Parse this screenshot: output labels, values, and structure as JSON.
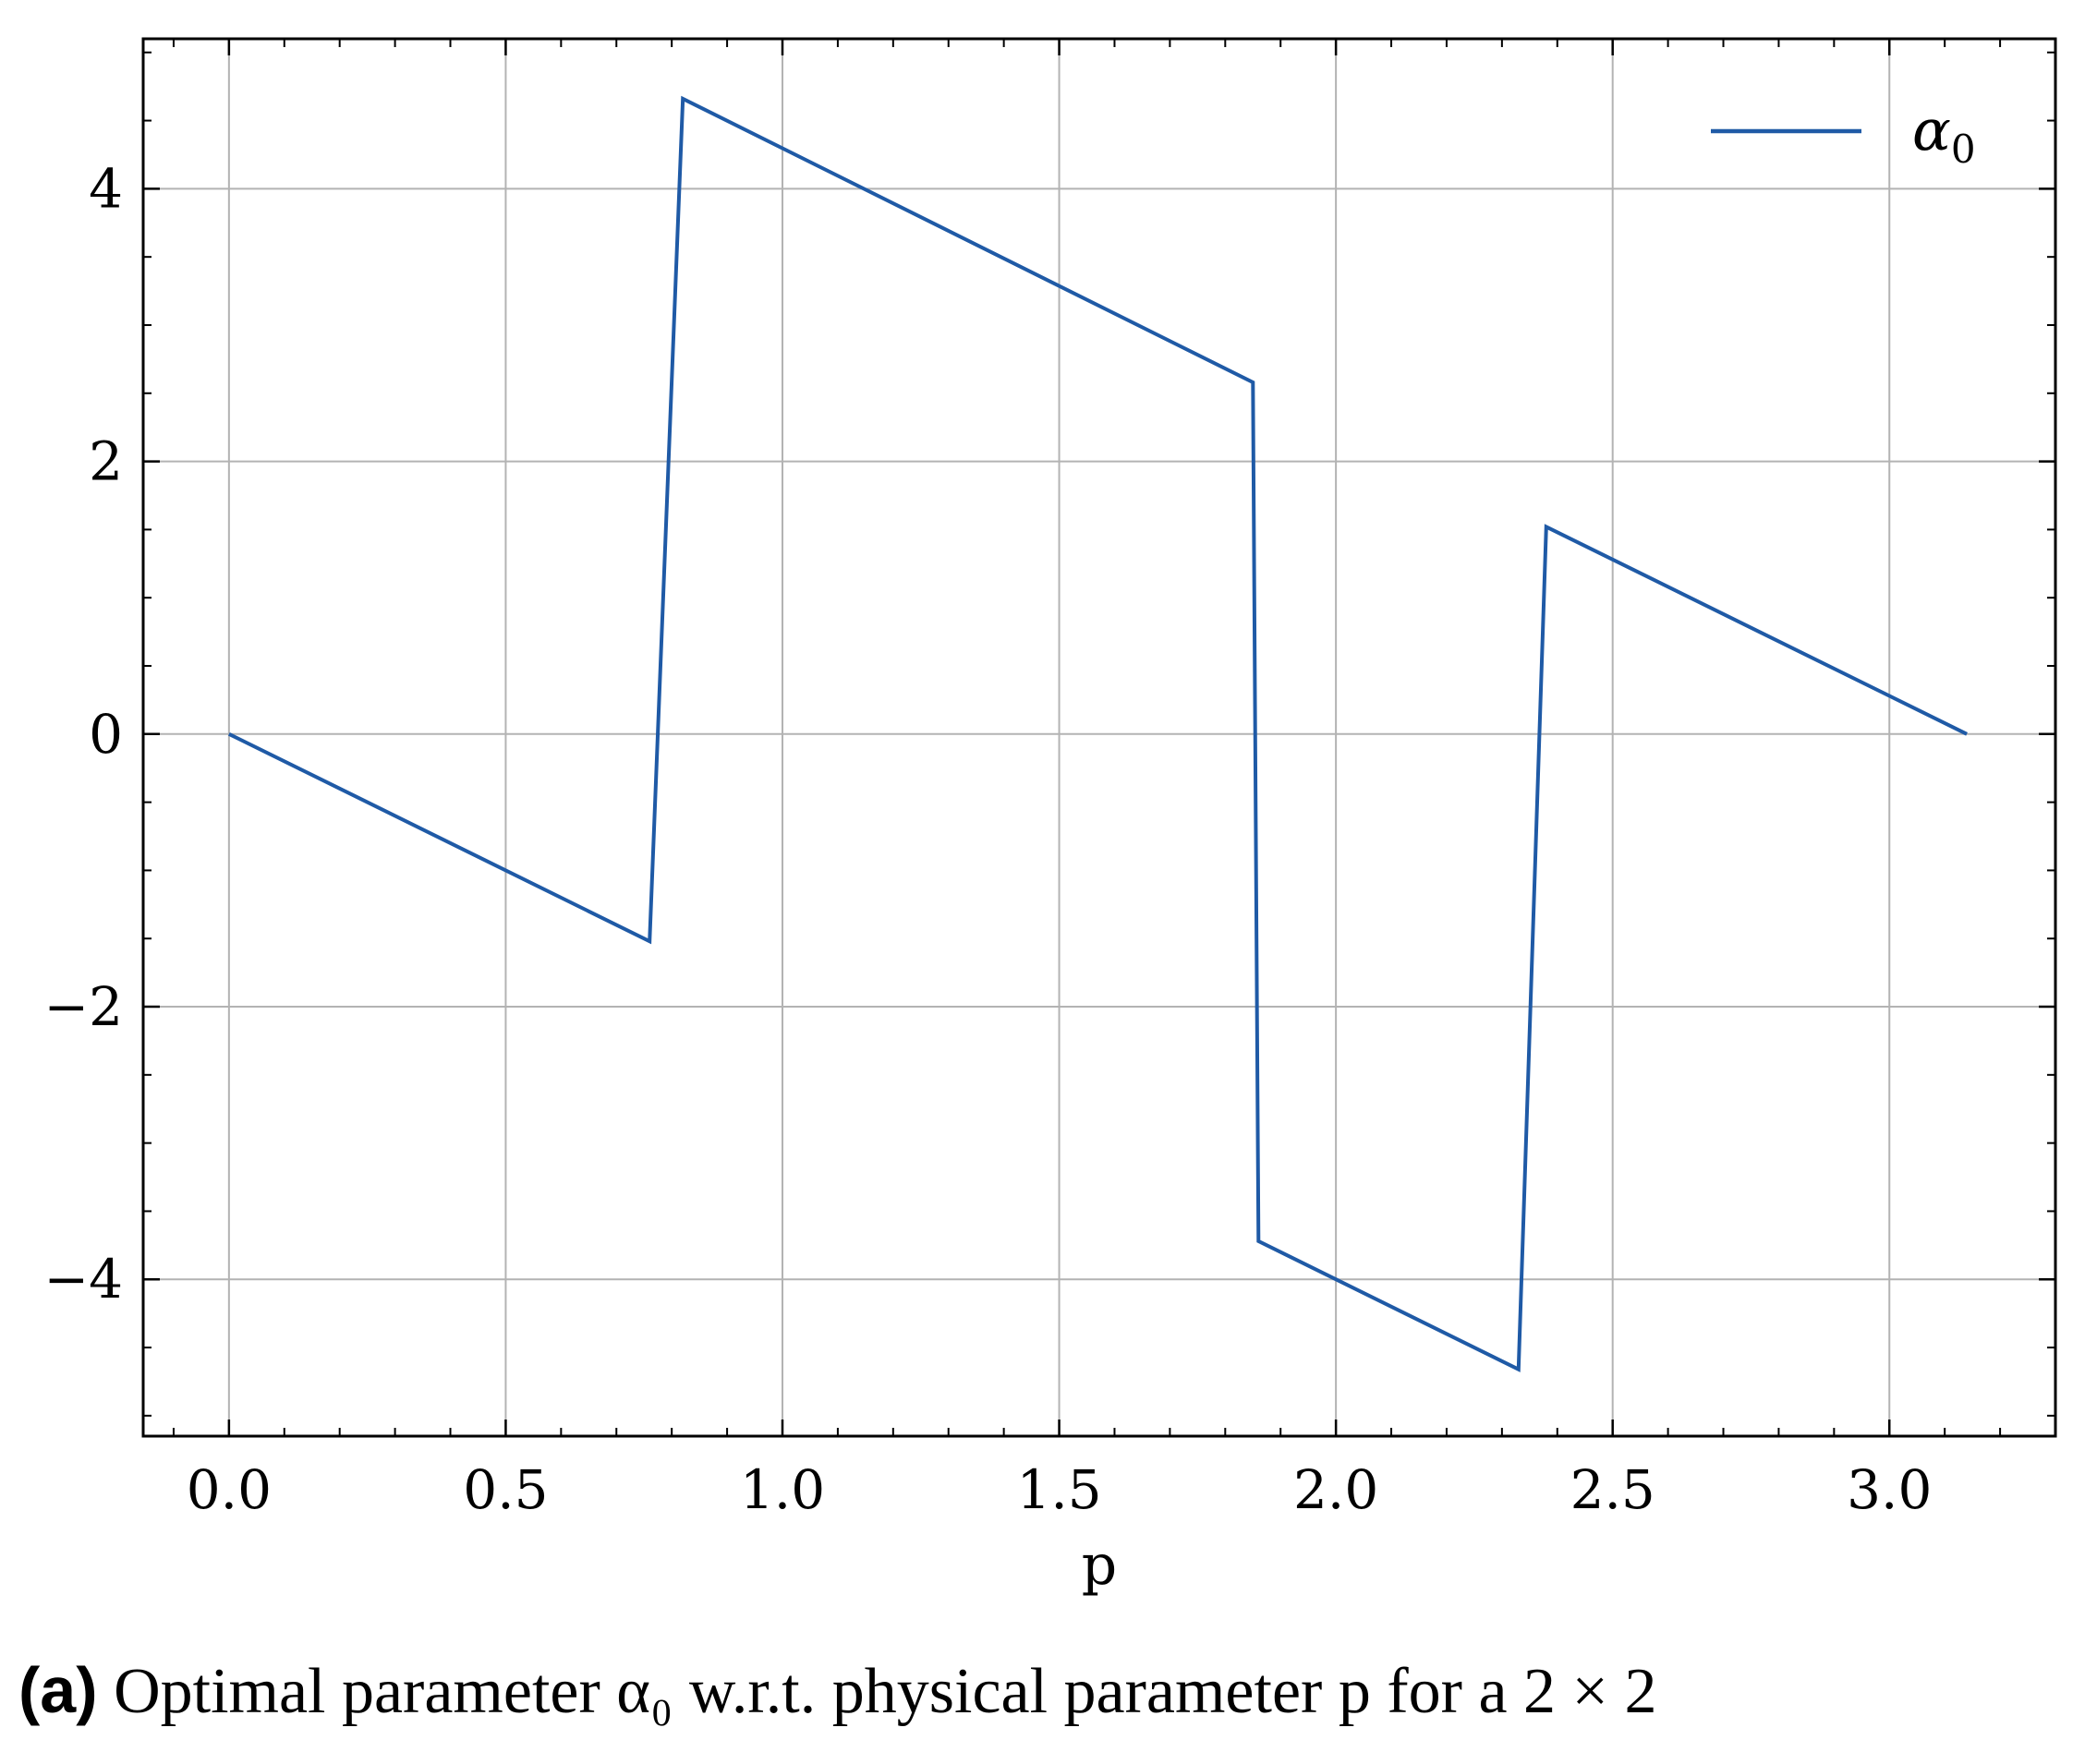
{
  "chart_data": {
    "type": "line",
    "xlabel": "p",
    "ylabel": "",
    "xlim": [
      -0.155,
      3.3
    ],
    "ylim": [
      -5.15,
      5.1
    ],
    "xticks": [
      0.0,
      0.5,
      1.0,
      1.5,
      2.0,
      2.5,
      3.0
    ],
    "xtick_labels": [
      "0.0",
      "0.5",
      "1.0",
      "1.5",
      "2.0",
      "2.5",
      "3.0"
    ],
    "yticks": [
      -4,
      -2,
      0,
      2,
      4
    ],
    "ytick_labels": [
      "−4",
      "−2",
      "0",
      "2",
      "4"
    ],
    "grid": true,
    "legend_position": "top-right",
    "series": [
      {
        "name": "α0",
        "color": "#1f5aa6",
        "x": [
          0.0,
          0.76,
          0.82,
          1.85,
          1.86,
          2.33,
          2.38,
          3.14
        ],
        "y": [
          0.0,
          -1.52,
          4.66,
          2.58,
          -3.72,
          -4.66,
          1.52,
          0.0
        ]
      }
    ]
  },
  "legend": {
    "symbol": "α",
    "subscript": "0"
  },
  "caption": {
    "label": "(a)",
    "text": " Optimal parameter α₀ w.r.t.  physical parameter p for a 2 × 2"
  }
}
